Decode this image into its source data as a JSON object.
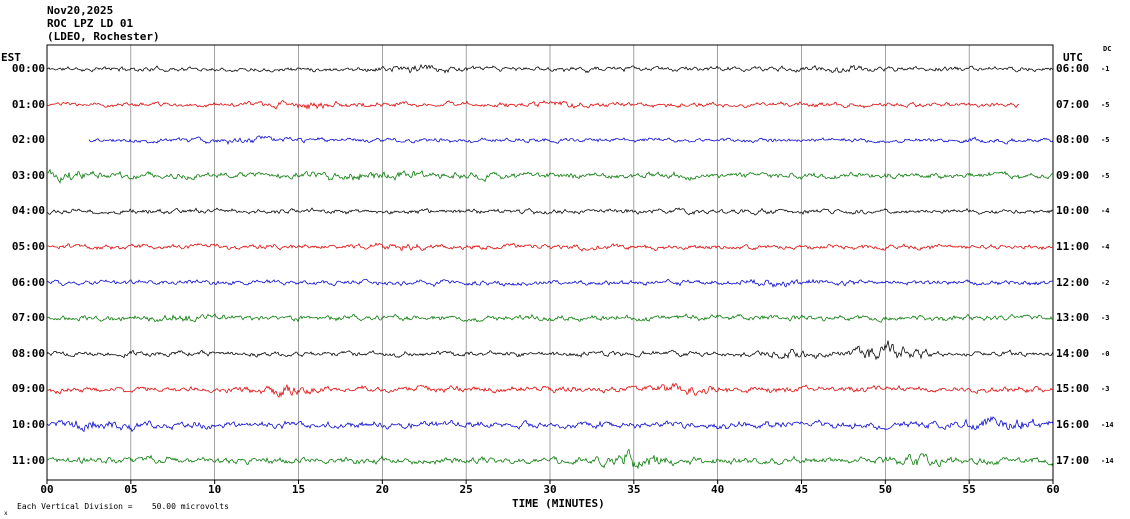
{
  "title": {
    "date": "Nov20,2025",
    "station": "ROC LPZ LD 01",
    "location": "(LDEO, Rochester)"
  },
  "axes": {
    "left_header": "EST",
    "right_header": "UTC",
    "dc_header": "DC",
    "xlabel": "TIME (MINUTES)",
    "x_ticks": [
      "00",
      "05",
      "10",
      "15",
      "20",
      "25",
      "30",
      "35",
      "40",
      "45",
      "50",
      "55",
      "60"
    ],
    "x_range": [
      0,
      60
    ]
  },
  "footer": {
    "corner_mark": "x",
    "scale_text": "Each Vertical Division =    50.00 microvolts"
  },
  "colors": {
    "black": "#000000",
    "red": "#dd0000",
    "blue": "#0000cc",
    "green": "#007700",
    "grid": "#666666"
  },
  "chart_data": {
    "type": "line",
    "kind": "helicorder-seismogram",
    "minutes_per_line": 60,
    "grid": true,
    "rows": [
      {
        "est": "00:00",
        "utc": "06:00",
        "color": "black",
        "dc": "-1",
        "seed": 11,
        "amp": 1.6,
        "start_min": 0,
        "end_min": 60,
        "bursts": [
          {
            "m": 22,
            "w": 1.5,
            "g": 1.1
          },
          {
            "m": 47,
            "w": 1.2,
            "g": 0.9
          }
        ]
      },
      {
        "est": "01:00",
        "utc": "07:00",
        "color": "red",
        "dc": "-5",
        "seed": 23,
        "amp": 1.6,
        "start_min": 0,
        "end_min": 58,
        "bursts": [
          {
            "m": 16,
            "w": 1.5,
            "g": 1.0
          },
          {
            "m": 31,
            "w": 1.2,
            "g": 0.8
          }
        ]
      },
      {
        "est": "02:00",
        "utc": "08:00",
        "color": "blue",
        "dc": "-5",
        "seed": 37,
        "amp": 1.5,
        "start_min": 2.5,
        "end_min": 60,
        "bursts": [
          {
            "m": 12,
            "w": 2.0,
            "g": 0.6
          }
        ]
      },
      {
        "est": "03:00",
        "utc": "09:00",
        "color": "green",
        "dc": "-5",
        "seed": 41,
        "amp": 2.2,
        "start_min": 0,
        "end_min": 60,
        "bursts": [
          {
            "m": 1,
            "w": 1.0,
            "g": 1.3
          },
          {
            "m": 20,
            "w": 2.5,
            "g": 0.7
          }
        ]
      },
      {
        "est": "04:00",
        "utc": "10:00",
        "color": "black",
        "dc": "-4",
        "seed": 53,
        "amp": 1.7,
        "start_min": 0,
        "end_min": 60,
        "bursts": []
      },
      {
        "est": "05:00",
        "utc": "11:00",
        "color": "red",
        "dc": "-4",
        "seed": 67,
        "amp": 1.8,
        "start_min": 0,
        "end_min": 60,
        "bursts": [
          {
            "m": 21,
            "w": 1.0,
            "g": 0.8
          }
        ]
      },
      {
        "est": "06:00",
        "utc": "12:00",
        "color": "blue",
        "dc": "-2",
        "seed": 71,
        "amp": 1.8,
        "start_min": 0,
        "end_min": 60,
        "bursts": [
          {
            "m": 44,
            "w": 1.5,
            "g": 0.7
          }
        ]
      },
      {
        "est": "07:00",
        "utc": "13:00",
        "color": "green",
        "dc": "-3",
        "seed": 83,
        "amp": 2.0,
        "start_min": 0,
        "end_min": 60,
        "bursts": [
          {
            "m": 8,
            "w": 1.5,
            "g": 0.7
          }
        ]
      },
      {
        "est": "08:00",
        "utc": "14:00",
        "color": "black",
        "dc": "-0",
        "seed": 97,
        "amp": 1.8,
        "start_min": 0,
        "end_min": 60,
        "bursts": [
          {
            "m": 50,
            "w": 1.5,
            "g": 2.4
          },
          {
            "m": 44,
            "w": 1.0,
            "g": 1.0
          }
        ]
      },
      {
        "est": "09:00",
        "utc": "15:00",
        "color": "red",
        "dc": "-3",
        "seed": 101,
        "amp": 2.2,
        "start_min": 0,
        "end_min": 60,
        "bursts": [
          {
            "m": 14,
            "w": 1.0,
            "g": 1.2
          },
          {
            "m": 38,
            "w": 1.2,
            "g": 0.9
          }
        ]
      },
      {
        "est": "10:00",
        "utc": "16:00",
        "color": "blue",
        "dc": "-14",
        "seed": 113,
        "amp": 2.4,
        "start_min": 0,
        "end_min": 60,
        "bursts": [
          {
            "m": 3,
            "w": 1.5,
            "g": 0.9
          },
          {
            "m": 57,
            "w": 1.8,
            "g": 1.1
          }
        ]
      },
      {
        "est": "11:00",
        "utc": "17:00",
        "color": "green",
        "dc": "-14",
        "seed": 127,
        "amp": 2.4,
        "start_min": 0,
        "end_min": 60,
        "bursts": [
          {
            "m": 35,
            "w": 1.2,
            "g": 1.6
          },
          {
            "m": 52,
            "w": 1.0,
            "g": 0.9
          }
        ]
      }
    ]
  }
}
